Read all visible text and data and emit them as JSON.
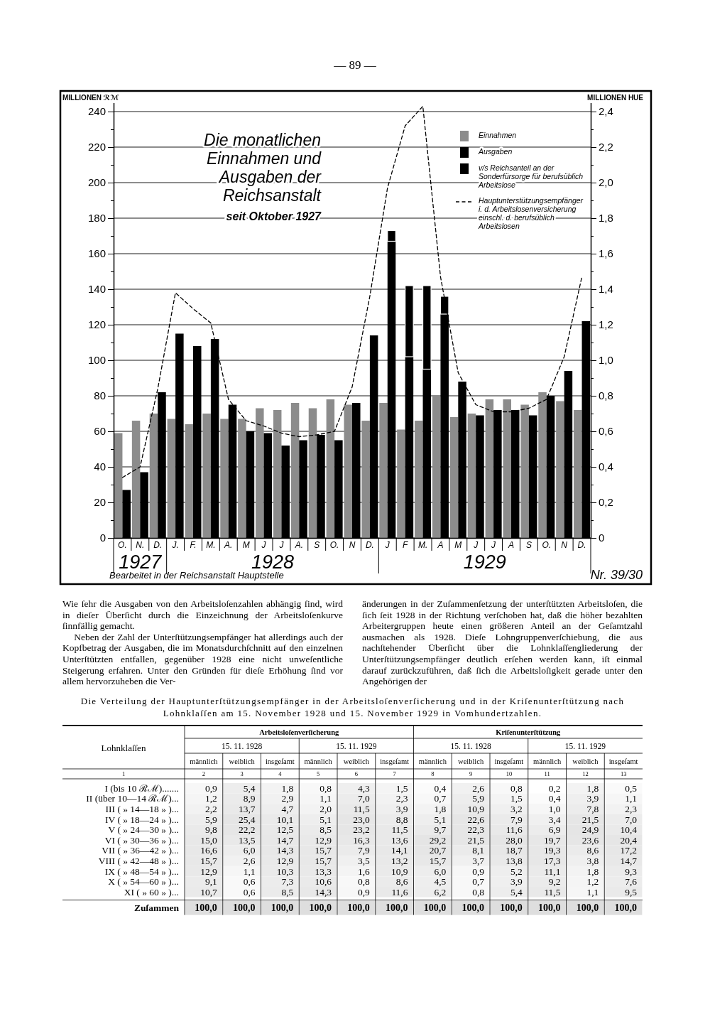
{
  "chart_data": [
    {
      "type": "bar",
      "title": "Die monatlichen Einnahmen und Ausgaben der Reichsanstalt",
      "subtitle": "seit Oktober 1927",
      "ylabel": "MILLIONEN ℛℳ",
      "y2label": "MILLIONEN HUE",
      "categories": [
        "O.",
        "N.",
        "D.",
        "J.",
        "F.",
        "M.",
        "A.",
        "M",
        "J",
        "J",
        "A.",
        "S",
        "O.",
        "N",
        "D.",
        "J",
        "F",
        "M.",
        "A",
        "M",
        "J",
        "J",
        "A",
        "S",
        "O.",
        "N",
        "D."
      ],
      "ylim": [
        0,
        245
      ],
      "yticks": [
        0,
        {
          "value": 10,
          "label": null
        },
        20,
        {
          "value": 30,
          "label": null
        },
        40,
        {
          "value": 50,
          "label": null
        },
        60,
        {
          "value": 70,
          "label": null
        },
        80,
        {
          "value": 90,
          "label": null
        },
        100,
        {
          "value": 110,
          "label": null
        },
        120,
        {
          "value": 130,
          "label": null
        },
        140,
        {
          "value": 150,
          "label": null
        },
        160,
        {
          "value": 170,
          "label": null
        },
        180,
        {
          "value": 190,
          "label": null
        },
        200,
        {
          "value": 210,
          "label": null
        },
        220,
        {
          "value": 230,
          "label": null
        },
        240
      ],
      "y2lim": [
        0,
        2.45
      ],
      "y2ticks": [
        0,
        {
          "value": 0.1,
          "label": null
        },
        {
          "value": 0.2,
          "label": "0,2"
        },
        {
          "value": 0.3,
          "label": null
        },
        {
          "value": 0.4,
          "label": "0,4"
        },
        {
          "value": 0.5,
          "label": null
        },
        {
          "value": 0.6,
          "label": "0,6"
        },
        {
          "value": 0.7,
          "label": null
        },
        {
          "value": 0.8,
          "label": "0,8"
        },
        {
          "value": 0.9,
          "label": null
        },
        {
          "value": 1.0,
          "label": "1,0"
        },
        {
          "value": 1.1,
          "label": null
        },
        {
          "value": 1.2,
          "label": "1,2"
        },
        {
          "value": 1.3,
          "label": null
        },
        {
          "value": 1.4,
          "label": "1,4"
        },
        {
          "value": 1.5,
          "label": null
        },
        {
          "value": 1.6,
          "label": "1,6"
        },
        {
          "value": 1.7,
          "label": null
        },
        {
          "value": 1.8,
          "label": "1,8"
        },
        {
          "value": 1.9,
          "label": null
        },
        {
          "value": 2.0,
          "label": "2,0"
        },
        {
          "value": 2.1,
          "label": null
        },
        {
          "value": 2.2,
          "label": "2,2"
        },
        {
          "value": 2.3,
          "label": null
        },
        {
          "value": 2.4,
          "label": "2,4"
        }
      ],
      "grid": "y",
      "legend": "top right",
      "line_style": "dashed",
      "series": [
        {
          "name": "Einnahmen",
          "color": "#8c8c8c",
          "values": [
            59,
            66,
            70,
            67,
            64,
            70,
            67,
            67,
            73,
            72,
            76,
            73,
            78,
            75,
            66,
            76,
            61,
            66,
            80,
            68,
            70,
            78,
            78,
            75,
            82,
            77,
            72
          ]
        },
        {
          "name": "Ausgaben",
          "color": "#000000",
          "values": [
            27,
            37,
            82,
            115,
            108,
            112,
            75,
            60,
            59,
            52,
            55,
            58,
            55,
            76,
            114,
            167,
            102,
            95,
            126,
            88,
            69,
            72,
            72,
            69,
            80,
            94,
            122
          ]
        },
        {
          "name": "v/s Reichsanteil an der Sonderfürsorge für berufsüblich Arbeitslose",
          "color": "#000000",
          "values": [
            null,
            null,
            null,
            null,
            null,
            null,
            null,
            null,
            null,
            null,
            null,
            null,
            null,
            null,
            null,
            6,
            40,
            47,
            10,
            null,
            null,
            null,
            null,
            null,
            null,
            null,
            null
          ],
          "base": [
            null,
            null,
            null,
            null,
            null,
            null,
            null,
            null,
            null,
            null,
            null,
            null,
            null,
            null,
            null,
            167,
            102,
            95,
            126,
            null,
            null,
            null,
            null,
            null,
            null,
            null,
            null
          ]
        },
        {
          "name": "Hauptunterstützungsempfänger i. d. Arbeitslosenversicherung einschl. d. berufsüblich Arbeitslosen",
          "type": "line",
          "axis": "y2",
          "color": "#000000",
          "values": [
            0.34,
            0.4,
            0.84,
            1.38,
            1.29,
            1.21,
            0.78,
            0.66,
            0.63,
            0.59,
            0.57,
            0.58,
            0.6,
            0.85,
            1.36,
            1.97,
            2.32,
            2.43,
            1.47,
            0.93,
            0.75,
            0.71,
            0.71,
            0.73,
            0.78,
            1.02,
            1.47
          ]
        }
      ],
      "annotations": [
        "— 89 —",
        "1927",
        "1928",
        "1929",
        "Bearbeitet in der Reichsanstalt Hauptstelle",
        "Nr. 39/30"
      ]
    },
    {
      "type": "other",
      "annotations": [
        "Wie ſehr die Ausgaben von den Arbeitsloſenzahlen abhängig ſind, wird in dieſer Überſicht durch die Einzeichnung der Arbeitsloſenkurve ſinnfällig gemacht.",
        "Neben der Zahl der Unterſtützungsempfänger hat allerdings auch der Kopfbetrag der Ausgaben, die im Monatsdurchſchnitt auf den einzelnen Unterſtützten entfallen, gegenüber 1928 eine nicht unweſentliche Steigerung erfahren. Unter den Gründen für dieſe Erhöhung ſind vor allem hervorzuheben die Ver-",
        "änderungen in der Zuſammenſetzung der unterſtützten Arbeitsloſen, die ſich ſeit 1928 in der Richtung verſchoben hat, daß die höher bezahlten Arbeitergruppen heute einen größeren Anteil an der Geſamtzahl ausmachen als 1928. Dieſe Lohngruppenverſchiebung, die aus nachſtehender Überſicht über die Lohnklaſſengliederung der Unterſtützungsempfänger deutlich erſehen werden kann, iſt einmal darauf zurückzuführen, daß ſich die Arbeitsloſigkeit gerade unter den Angehörigen der"
      ]
    },
    {
      "type": "heatmap",
      "title": "Die Verteilung der Hauptunterſtützungsempfänger in der Arbeitsloſenverſicherung und in der Kriſenunterſtützung nach Lohnklaſſen am 15. November 1928 und 15. November 1929 in Vomhundertzahlen.",
      "categories": [
        "männlich",
        "weiblich",
        "insgeſamt",
        "männlich",
        "weiblich",
        "insgeſamt",
        "männlich",
        "weiblich",
        "insgeſamt",
        "männlich",
        "weiblich",
        "insgeſamt"
      ],
      "y_categories": [
        "I (bis 10 ℛℳ).......",
        "II (über 10—14 ℛℳ)...",
        "III ( » 14—18 » )...",
        "IV ( » 18—24 » )...",
        "V ( » 24—30 » )...",
        "VI ( » 30—36 » )...",
        "VII ( » 36—42 » )...",
        "VIII ( » 42—48 » )...",
        "IX ( » 48—54 » )...",
        "X ( » 54—60 » )...",
        "XI ( » 60 » )...",
        "Zuſammen"
      ],
      "cells": [
        [
          0.9,
          5.4,
          1.8,
          0.8,
          4.3,
          1.5,
          0.4,
          2.6,
          0.8,
          0.2,
          1.8,
          0.5
        ],
        [
          1.2,
          8.9,
          2.9,
          1.1,
          7.0,
          2.3,
          0.7,
          5.9,
          1.5,
          0.4,
          3.9,
          1.1
        ],
        [
          2.2,
          13.7,
          4.7,
          2.0,
          11.5,
          3.9,
          1.8,
          10.9,
          3.2,
          1.0,
          7.8,
          2.3
        ],
        [
          5.9,
          25.4,
          10.1,
          5.1,
          23.0,
          8.8,
          5.1,
          22.6,
          7.9,
          3.4,
          21.5,
          7.0
        ],
        [
          9.8,
          22.2,
          12.5,
          8.5,
          23.2,
          11.5,
          9.7,
          22.3,
          11.6,
          6.9,
          24.9,
          10.4
        ],
        [
          15.0,
          13.5,
          14.7,
          12.9,
          16.3,
          13.6,
          29.2,
          21.5,
          28.0,
          19.7,
          23.6,
          20.4
        ],
        [
          16.6,
          6.0,
          14.3,
          15.7,
          7.9,
          14.1,
          20.7,
          8.1,
          18.7,
          19.3,
          8.6,
          17.2
        ],
        [
          15.7,
          2.6,
          12.9,
          15.7,
          3.5,
          13.2,
          15.7,
          3.7,
          13.8,
          17.3,
          3.8,
          14.7
        ],
        [
          12.9,
          1.1,
          10.3,
          13.3,
          1.6,
          10.9,
          6.0,
          0.9,
          5.2,
          11.1,
          1.8,
          9.3
        ],
        [
          9.1,
          0.6,
          7.3,
          10.6,
          0.8,
          8.6,
          4.5,
          0.7,
          3.9,
          9.2,
          1.2,
          7.6
        ],
        [
          10.7,
          0.6,
          8.5,
          14.3,
          0.9,
          11.6,
          6.2,
          0.8,
          5.4,
          11.5,
          1.1,
          9.5
        ],
        [
          100.0,
          100.0,
          100.0,
          100.0,
          100.0,
          100.0,
          100.0,
          100.0,
          100.0,
          100.0,
          100.0,
          100.0
        ]
      ],
      "cell_labels": [
        [
          "0,9",
          "5,4",
          "1,8",
          "0,8",
          "4,3",
          "1,5",
          "0,4",
          "2,6",
          "0,8",
          "0,2",
          "1,8",
          "0,5"
        ],
        [
          "1,2",
          "8,9",
          "2,9",
          "1,1",
          "7,0",
          "2,3",
          "0,7",
          "5,9",
          "1,5",
          "0,4",
          "3,9",
          "1,1"
        ],
        [
          "2,2",
          "13,7",
          "4,7",
          "2,0",
          "11,5",
          "3,9",
          "1,8",
          "10,9",
          "3,2",
          "1,0",
          "7,8",
          "2,3"
        ],
        [
          "5,9",
          "25,4",
          "10,1",
          "5,1",
          "23,0",
          "8,8",
          "5,1",
          "22,6",
          "7,9",
          "3,4",
          "21,5",
          "7,0"
        ],
        [
          "9,8",
          "22,2",
          "12,5",
          "8,5",
          "23,2",
          "11,5",
          "9,7",
          "22,3",
          "11,6",
          "6,9",
          "24,9",
          "10,4"
        ],
        [
          "15,0",
          "13,5",
          "14,7",
          "12,9",
          "16,3",
          "13,6",
          "29,2",
          "21,5",
          "28,0",
          "19,7",
          "23,6",
          "20,4"
        ],
        [
          "16,6",
          "6,0",
          "14,3",
          "15,7",
          "7,9",
          "14,1",
          "20,7",
          "8,1",
          "18,7",
          "19,3",
          "8,6",
          "17,2"
        ],
        [
          "15,7",
          "2,6",
          "12,9",
          "15,7",
          "3,5",
          "13,2",
          "15,7",
          "3,7",
          "13,8",
          "17,3",
          "3,8",
          "14,7"
        ],
        [
          "12,9",
          "1,1",
          "10,3",
          "13,3",
          "1,6",
          "10,9",
          "6,0",
          "0,9",
          "5,2",
          "11,1",
          "1,8",
          "9,3"
        ],
        [
          "9,1",
          "0,6",
          "7,3",
          "10,6",
          "0,8",
          "8,6",
          "4,5",
          "0,7",
          "3,9",
          "9,2",
          "1,2",
          "7,6"
        ],
        [
          "10,7",
          "0,6",
          "8,5",
          "14,3",
          "0,9",
          "11,6",
          "6,2",
          "0,8",
          "5,4",
          "11,5",
          "1,1",
          "9,5"
        ],
        [
          "100,0",
          "100,0",
          "100,0",
          "100,0",
          "100,0",
          "100,0",
          "100,0",
          "100,0",
          "100,0",
          "100,0",
          "100,0",
          "100,0"
        ]
      ],
      "annotations": [
        "Lohnklaſſen",
        "Arbeitsloſenverſicherung",
        "Kriſenunterſtützung",
        "15. 11. 1928",
        "15. 11. 1929",
        "15. 11. 1928",
        "15. 11. 1929",
        "1",
        "2",
        "3",
        "4",
        "5",
        "6",
        "7",
        "8",
        "9",
        "10",
        "11",
        "12",
        "13"
      ]
    }
  ]
}
